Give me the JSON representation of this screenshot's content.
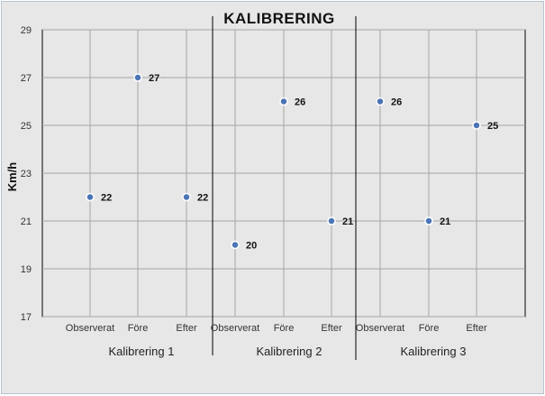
{
  "chart_data": {
    "type": "scatter",
    "title": "KALIBRERING",
    "ylabel": "Km/h",
    "xlabel": "",
    "ylim": [
      17,
      29
    ],
    "yticks": [
      17,
      19,
      21,
      23,
      25,
      27,
      29
    ],
    "grid": true,
    "legend": "none",
    "categories": [
      "Observerat",
      "Före",
      "Efter",
      "Observerat",
      "Före",
      "Efter",
      "Observerat",
      "Före",
      "Efter"
    ],
    "groups": [
      "Kalibrering 1",
      "Kalibrering 2",
      "Kalibrering 3"
    ],
    "values": [
      22,
      27,
      22,
      20,
      26,
      21,
      26,
      21,
      25
    ],
    "marker_color": "#4a74b5"
  }
}
